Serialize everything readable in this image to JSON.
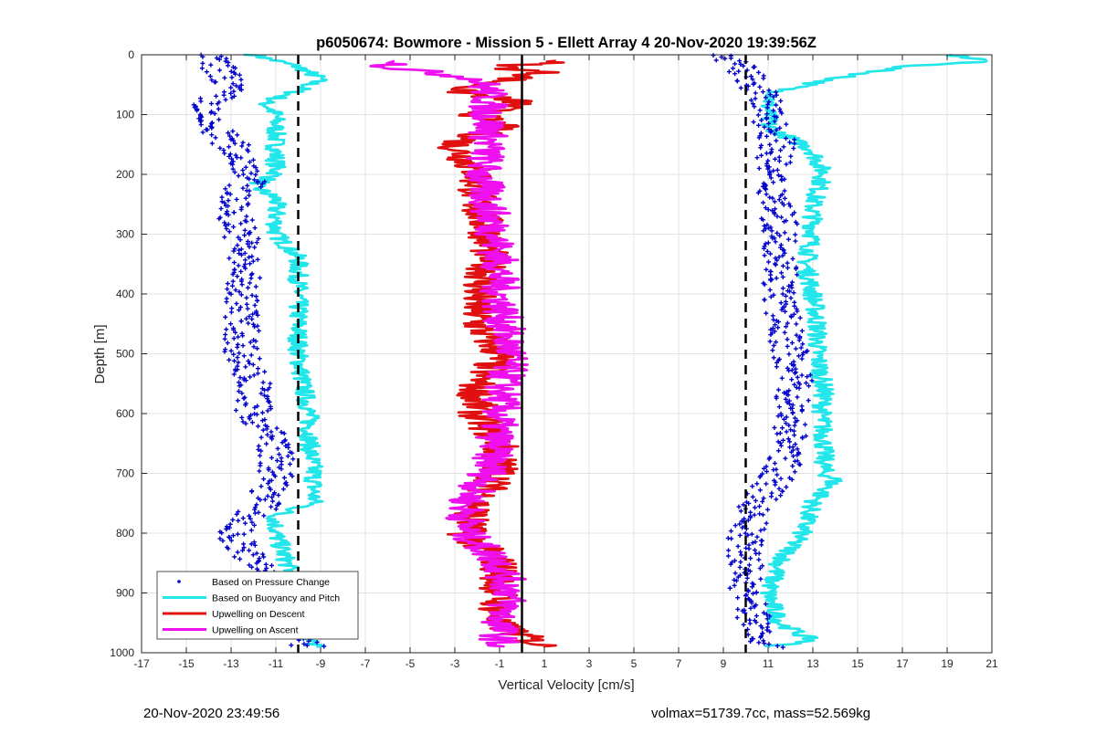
{
  "chart_data": {
    "type": "scatter",
    "title": "p6050674: Bowmore - Mission 5 - Ellett Array 4 20-Nov-2020 19:39:56Z",
    "xlabel": "Vertical Velocity [cm/s]",
    "ylabel": "Depth [m]",
    "xlim": [
      -17,
      21
    ],
    "ylim": [
      0,
      1000
    ],
    "y_reversed": true,
    "grid": true,
    "xticks": [
      -17,
      -15,
      -13,
      -11,
      -9,
      -7,
      -5,
      -3,
      -1,
      1,
      3,
      5,
      7,
      9,
      11,
      13,
      15,
      17,
      19,
      21
    ],
    "yticks": [
      0,
      100,
      200,
      300,
      400,
      500,
      600,
      700,
      800,
      900,
      1000
    ],
    "legend_position": "bottom-left",
    "legend": [
      {
        "label": "Based on Pressure Change",
        "style": "dot",
        "color": "#0000cc"
      },
      {
        "label": "Based on Buoyancy and Pitch",
        "style": "line",
        "color": "#22e6ea"
      },
      {
        "label": "Upwelling on Descent",
        "style": "line",
        "color": "#e01010"
      },
      {
        "label": "Upwelling on Ascent",
        "style": "line",
        "color": "#ee10ee"
      }
    ],
    "reference_lines": [
      {
        "x": -10,
        "style": "dashed"
      },
      {
        "x": 0,
        "style": "solid"
      },
      {
        "x": 10,
        "style": "dashed"
      }
    ],
    "series": [
      {
        "name": "Based on Buoyancy and Pitch",
        "group": "descent",
        "depth": [
          0,
          20,
          40,
          60,
          80,
          100,
          120,
          140,
          160,
          180,
          200,
          220,
          240,
          260,
          280,
          300,
          320,
          340,
          360,
          400,
          450,
          500,
          550,
          600,
          650,
          700,
          750,
          770,
          800,
          850,
          900,
          950,
          990
        ],
        "values": [
          -12,
          -10,
          -9,
          -10,
          -11.5,
          -11,
          -11,
          -11,
          -11,
          -11,
          -11,
          -12,
          -11,
          -11,
          -11,
          -11,
          -10.5,
          -10,
          -10,
          -10,
          -10,
          -10,
          -9.8,
          -9.5,
          -9.5,
          -9.3,
          -9.3,
          -11,
          -11,
          -10.5,
          -10,
          -9.5,
          -9.3
        ]
      },
      {
        "name": "Based on Buoyancy and Pitch",
        "group": "ascent",
        "depth": [
          0,
          10,
          20,
          40,
          60,
          80,
          100,
          120,
          150,
          160,
          200,
          250,
          300,
          350,
          400,
          450,
          500,
          560,
          600,
          650,
          700,
          710,
          750,
          800,
          850,
          900,
          950,
          980,
          990
        ],
        "values": [
          19,
          21,
          17,
          14,
          11.5,
          11,
          11,
          11,
          12.5,
          13,
          13.5,
          13,
          13,
          12.7,
          13,
          13.2,
          13.2,
          13.5,
          13.4,
          13.5,
          13.5,
          14,
          13,
          12.5,
          11.5,
          11,
          11.5,
          13,
          11
        ]
      },
      {
        "name": "Upwelling on Descent",
        "depth": [
          10,
          20,
          30,
          60,
          80,
          100,
          120,
          150,
          200,
          250,
          300,
          350,
          400,
          450,
          500,
          550,
          600,
          650,
          700,
          750,
          800,
          850,
          900,
          950,
          990
        ],
        "values": [
          2,
          -1,
          1,
          -3,
          0,
          -2,
          -1,
          -3,
          -2,
          -2,
          -1.5,
          -1.5,
          -2,
          -2,
          -1,
          -2,
          -2,
          -1,
          -1,
          -2,
          -2.5,
          -1,
          -1,
          -1.2,
          1
        ]
      },
      {
        "name": "Upwelling on Ascent",
        "depth": [
          10,
          20,
          40,
          60,
          100,
          150,
          200,
          250,
          300,
          350,
          400,
          450,
          500,
          550,
          600,
          650,
          700,
          750,
          800,
          850,
          900,
          950,
          990
        ],
        "values": [
          -5,
          -6,
          -2,
          -1.5,
          -1.5,
          -1.5,
          -1.8,
          -1.5,
          -1.2,
          -1,
          -1,
          -0.8,
          -0.5,
          -0.8,
          -1,
          -1.2,
          -1.5,
          -2.5,
          -2.5,
          -1,
          -0.5,
          -1,
          -1
        ]
      },
      {
        "name": "Based on Pressure Change",
        "group": "descent",
        "depth": [
          0,
          50,
          100,
          150,
          200,
          250,
          300,
          350,
          400,
          450,
          500,
          550,
          600,
          650,
          700,
          750,
          800,
          850,
          900,
          950,
          990
        ],
        "values": [
          -14,
          -13,
          -14.5,
          -13,
          -12,
          -13,
          -12.5,
          -12.5,
          -12.5,
          -12.5,
          -12.5,
          -12,
          -12,
          -11,
          -11,
          -11.5,
          -13,
          -12,
          -10.5,
          -10,
          -9.5
        ]
      },
      {
        "name": "Based on Pressure Change",
        "group": "ascent",
        "depth": [
          0,
          50,
          100,
          150,
          200,
          250,
          300,
          350,
          400,
          450,
          500,
          550,
          600,
          650,
          700,
          750,
          800,
          850,
          900,
          950,
          990
        ],
        "values": [
          9,
          10.5,
          11,
          11.5,
          11,
          11.5,
          11.5,
          11.7,
          11.5,
          11.7,
          12,
          12.2,
          12,
          12,
          11.5,
          10.5,
          10,
          10,
          10,
          10.5,
          11
        ]
      }
    ]
  },
  "footer": {
    "timestamp": "20-Nov-2020 23:49:56",
    "stats": "volmax=51739.7cc, mass=52.569kg"
  }
}
